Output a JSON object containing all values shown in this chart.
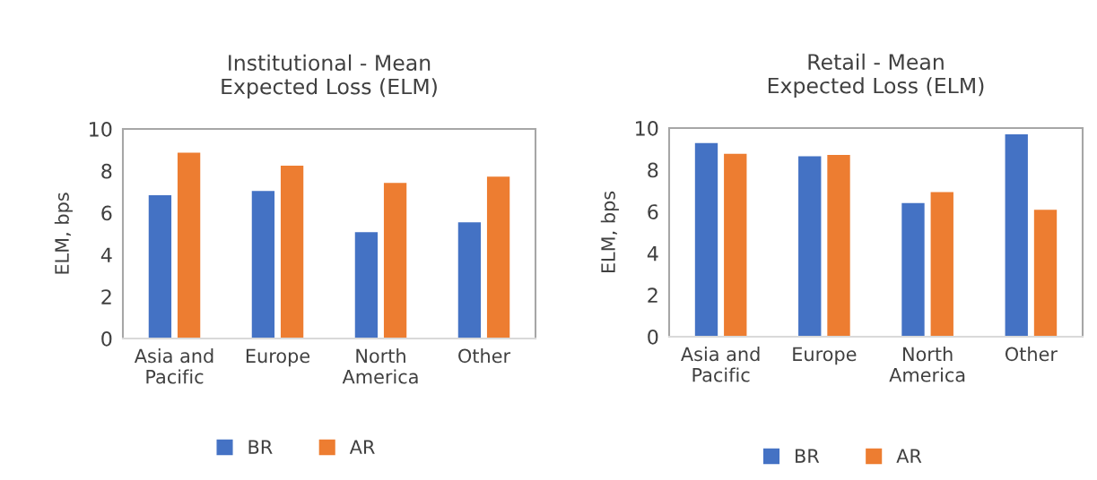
{
  "chart_data": [
    {
      "type": "bar",
      "title": "Institutional - Mean\nExpected Loss (ELM)",
      "ylabel": "ELM, bps",
      "categories": [
        "Asia and\nPacific",
        "Europe",
        "North\nAmerica",
        "Other"
      ],
      "series": [
        {
          "name": "BR",
          "color": "#4472c4",
          "values": [
            6.84,
            7.04,
            5.08,
            5.54
          ]
        },
        {
          "name": "AR",
          "color": "#ed7d31",
          "values": [
            8.87,
            8.25,
            7.42,
            7.72
          ]
        }
      ],
      "ylim": [
        0,
        10
      ],
      "yticks": [
        0,
        2,
        4,
        6,
        8,
        10
      ],
      "legend": "bottom"
    },
    {
      "type": "bar",
      "title": "Retail - Mean\nExpected Loss (ELM)",
      "ylabel": "ELM, bps",
      "categories": [
        "Asia and\nPacific",
        "Europe",
        "North\nAmerica",
        "Other"
      ],
      "series": [
        {
          "name": "BR",
          "color": "#4472c4",
          "values": [
            9.28,
            8.65,
            6.41,
            9.7
          ]
        },
        {
          "name": "AR",
          "color": "#ed7d31",
          "values": [
            8.77,
            8.71,
            6.93,
            6.08
          ]
        }
      ],
      "ylim": [
        0,
        10
      ],
      "yticks": [
        0,
        2,
        4,
        6,
        8,
        10
      ],
      "legend": "bottom"
    }
  ]
}
